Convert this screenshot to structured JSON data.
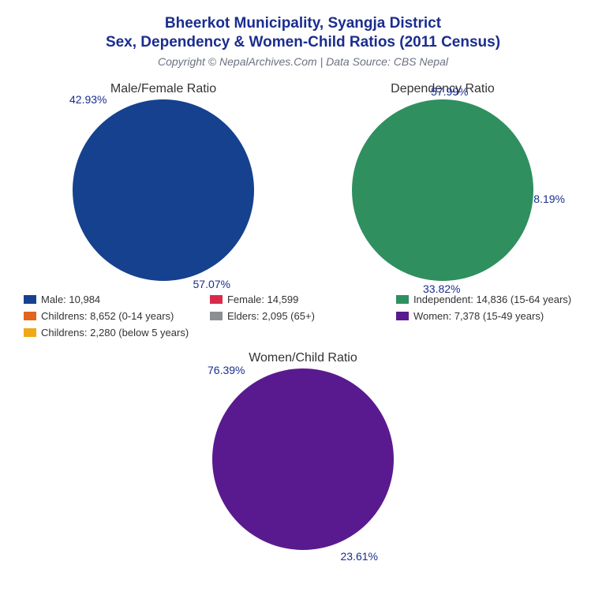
{
  "title_line1": "Bheerkot Municipality, Syangja District",
  "title_line2": "Sex, Dependency & Women-Child Ratios (2011 Census)",
  "subtitle": "Copyright © NepalArchives.Com | Data Source: CBS Nepal",
  "colors": {
    "title": "#1a2d8f",
    "subtitle": "#6b7280",
    "text": "#333333",
    "background": "#ffffff",
    "male": "#15418f",
    "female": "#d82b4b",
    "children": "#e0651e",
    "elders": "#8a8f94",
    "independent": "#2f8f5f",
    "women": "#5a1a8f",
    "children_u5": "#f0a818"
  },
  "chart1": {
    "title": "Male/Female Ratio",
    "slices": [
      {
        "label": "42.93%",
        "value": 42.93,
        "color": "#15418f"
      },
      {
        "label": "57.07%",
        "value": 57.07,
        "color": "#d82b4b"
      }
    ]
  },
  "chart2": {
    "title": "Dependency Ratio",
    "slices": [
      {
        "label": "57.99%",
        "value": 57.99,
        "color": "#2f8f5f"
      },
      {
        "label": "8.19%",
        "value": 8.19,
        "color": "#8a8f94"
      },
      {
        "label": "33.82%",
        "value": 33.82,
        "color": "#e0651e"
      }
    ]
  },
  "chart3": {
    "title": "Women/Child Ratio",
    "slices": [
      {
        "label": "76.39%",
        "value": 76.39,
        "color": "#5a1a8f"
      },
      {
        "label": "23.61%",
        "value": 23.61,
        "color": "#f0a818"
      }
    ]
  },
  "legend": [
    {
      "color": "#15418f",
      "text": "Male: 10,984"
    },
    {
      "color": "#d82b4b",
      "text": "Female: 14,599"
    },
    {
      "color": "#2f8f5f",
      "text": "Independent: 14,836 (15-64 years)"
    },
    {
      "color": "#e0651e",
      "text": "Childrens: 8,652 (0-14 years)"
    },
    {
      "color": "#8a8f94",
      "text": "Elders: 2,095 (65+)"
    },
    {
      "color": "#5a1a8f",
      "text": "Women: 7,378 (15-49 years)"
    },
    {
      "color": "#f0a818",
      "text": "Childrens: 2,280 (below 5 years)"
    }
  ],
  "typography": {
    "title_fontsize": 19,
    "subtitle_fontsize": 14,
    "chart_title_fontsize": 16,
    "label_fontsize": 14,
    "legend_fontsize": 13
  }
}
